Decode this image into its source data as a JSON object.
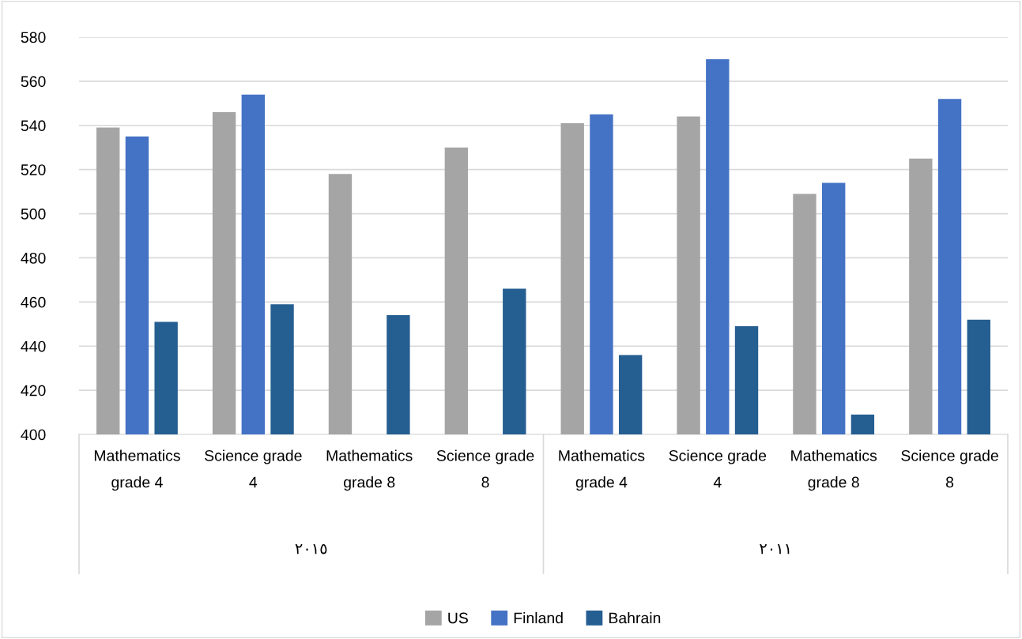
{
  "chart_data": {
    "type": "bar",
    "categories": [
      "Mathematics grade 4",
      "Science grade 4",
      "Mathematics grade 8",
      "Science grade 8",
      "Mathematics grade 4",
      "Science grade 4",
      "Mathematics grade 8",
      "Science grade 8"
    ],
    "series": [
      {
        "name": "US",
        "color": "#a5a5a5",
        "values": [
          539,
          546,
          518,
          530,
          541,
          544,
          509,
          525
        ]
      },
      {
        "name": "Finland",
        "color": "#4472c4",
        "values": [
          535,
          554,
          null,
          null,
          545,
          570,
          514,
          552
        ]
      },
      {
        "name": "Bahrain",
        "color": "#255e91",
        "values": [
          451,
          459,
          454,
          466,
          436,
          449,
          409,
          452
        ]
      }
    ],
    "annotations": [
      "٢٠١٥",
      "٢٠١١"
    ],
    "ylim": [
      400,
      580
    ],
    "yticks": [
      400,
      420,
      440,
      460,
      480,
      500,
      520,
      540,
      560,
      580
    ],
    "grid": "y",
    "legend": "bottom"
  }
}
